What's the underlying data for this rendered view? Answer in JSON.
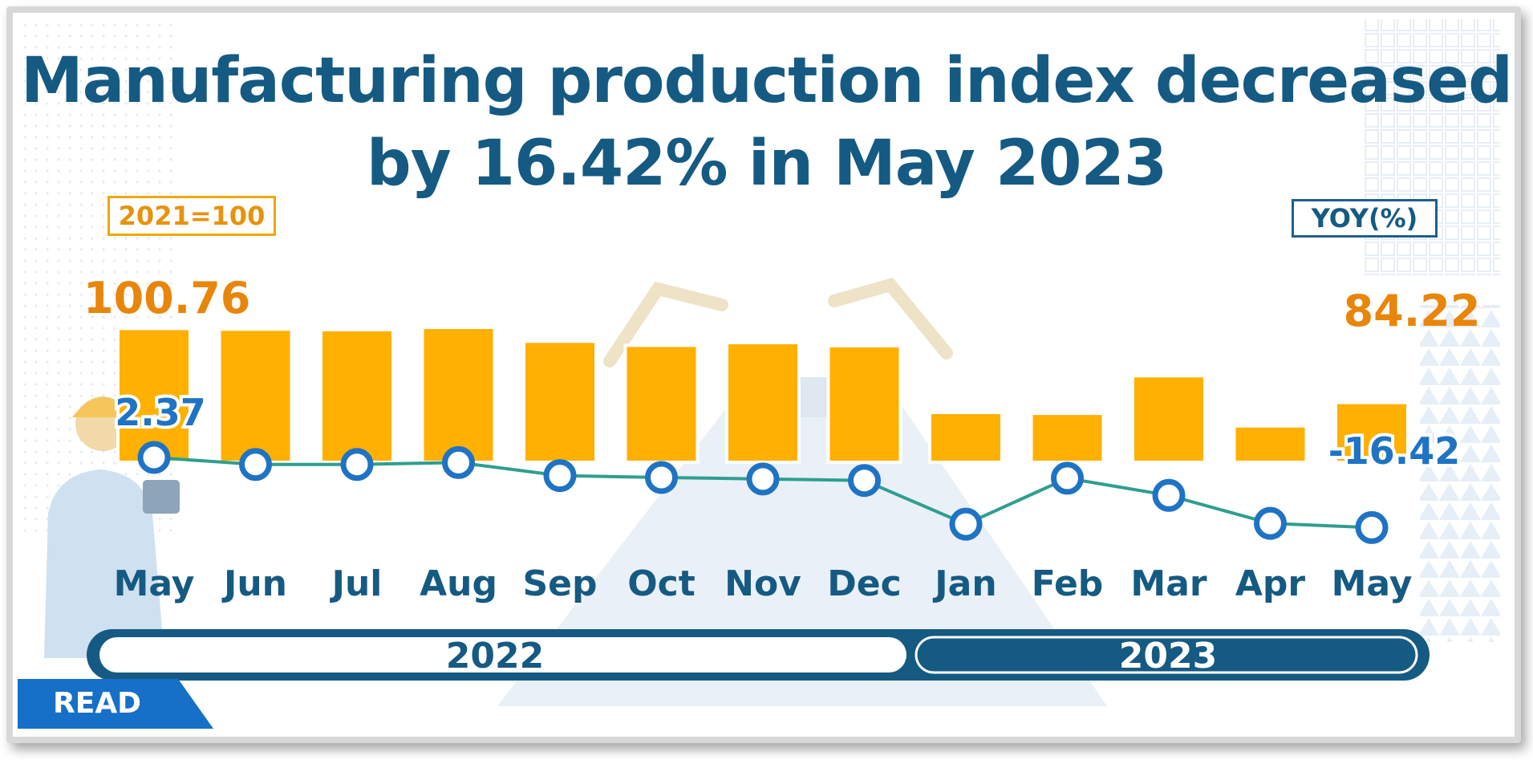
{
  "title_line1": "Manufacturing production index decreased",
  "title_line2": "by 16.42% in  May 2023",
  "unit_label": "2021=100",
  "yoy_label": "YOY(%)",
  "read_label": "READ",
  "year_labels": [
    "2022",
    "2023"
  ],
  "colors": {
    "bar": "#ffb000",
    "line": "#2f9e8f",
    "marker": "#1f73c4",
    "title": "#155a82",
    "accent_label": "#e8860b"
  },
  "chart_data": {
    "type": "bar",
    "categories": [
      "May",
      "Jun",
      "Jul",
      "Aug",
      "Sep",
      "Oct",
      "Nov",
      "Dec",
      "Jan",
      "Feb",
      "Mar",
      "Apr",
      "May"
    ],
    "series": [
      {
        "name": "2021=100",
        "type": "bar",
        "values": [
          100.76,
          100.6,
          100.5,
          101.0,
          97.9,
          97.0,
          97.6,
          96.9,
          82.0,
          81.8,
          90.2,
          79.0,
          84.22
        ],
        "labels": [
          {
            "index": 0,
            "text": "100.76"
          },
          {
            "index": 12,
            "text": "84.22"
          }
        ]
      },
      {
        "name": "YOY(%)",
        "type": "line",
        "values": [
          2.37,
          0.5,
          0.5,
          1.0,
          -2.5,
          -3.0,
          -3.4,
          -3.8,
          -15.5,
          -3.2,
          -7.8,
          -15.3,
          -16.42
        ],
        "labels": [
          {
            "index": 0,
            "text": "2.37"
          },
          {
            "index": 12,
            "text": "-16.42"
          }
        ]
      }
    ],
    "groups": [
      {
        "label": "2022",
        "from": 0,
        "to": 7
      },
      {
        "label": "2023",
        "from": 8,
        "to": 12
      }
    ]
  }
}
